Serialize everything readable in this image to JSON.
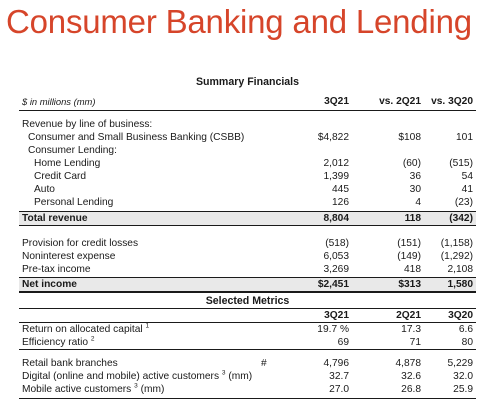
{
  "page": {
    "title": "Consumer Banking and Lending"
  },
  "summary": {
    "heading": "Summary Financials",
    "units": "$ in millions (mm)",
    "col_headers": [
      "3Q21",
      "vs. 2Q21",
      "vs. 3Q20"
    ],
    "section_label": "Revenue by line of business:",
    "rows_a": [
      {
        "label": "Consumer and Small Business Banking (CSBB)",
        "v1": "$4,822",
        "v2": "$108",
        "v3": "101"
      },
      {
        "label": "Consumer Lending:",
        "v1": "",
        "v2": "",
        "v3": ""
      },
      {
        "label": "Home Lending",
        "v1": "2,012",
        "v2": "(60)",
        "v3": "(515)"
      },
      {
        "label": "Credit Card",
        "v1": "1,399",
        "v2": "36",
        "v3": "54"
      },
      {
        "label": "Auto",
        "v1": "445",
        "v2": "30",
        "v3": "41"
      },
      {
        "label": "Personal Lending",
        "v1": "126",
        "v2": "4",
        "v3": "(23)"
      }
    ],
    "total_revenue": {
      "label": "Total revenue",
      "v1": "8,804",
      "v2": "118",
      "v3": "(342)"
    },
    "rows_b": [
      {
        "label": "Provision for credit losses",
        "v1": "(518)",
        "v2": "(151)",
        "v3": "(1,158)"
      },
      {
        "label": "Noninterest expense",
        "v1": "6,053",
        "v2": "(149)",
        "v3": "(1,292)"
      },
      {
        "label": "Pre-tax income",
        "v1": "3,269",
        "v2": "418",
        "v3": "2,108"
      }
    ],
    "net_income": {
      "label": "Net income",
      "v1": "$2,451",
      "v2": "$313",
      "v3": "1,580"
    }
  },
  "metrics": {
    "heading": "Selected Metrics",
    "col_headers": [
      "3Q21",
      "2Q21",
      "3Q20"
    ],
    "rows_a": [
      {
        "label": "Return on allocated capital",
        "sup": "1",
        "v1": "19.7 %",
        "v2": "17.3",
        "v3": "6.6"
      },
      {
        "label": "Efficiency ratio",
        "sup": "2",
        "v1": "69",
        "v2": "71",
        "v3": "80"
      }
    ],
    "branches": {
      "label": "Retail bank branches",
      "mark": "#",
      "v1": "4,796",
      "v2": "4,878",
      "v3": "5,229"
    },
    "digital": {
      "label": "Digital (online and mobile) active customers",
      "sup": "3",
      "suffix": "(mm)",
      "v1": "32.7",
      "v2": "32.6",
      "v3": "32.0"
    },
    "mobile": {
      "label": "Mobile active customers",
      "sup": "3",
      "suffix": "(mm)",
      "v1": "27.0",
      "v2": "26.8",
      "v3": "25.9"
    }
  }
}
